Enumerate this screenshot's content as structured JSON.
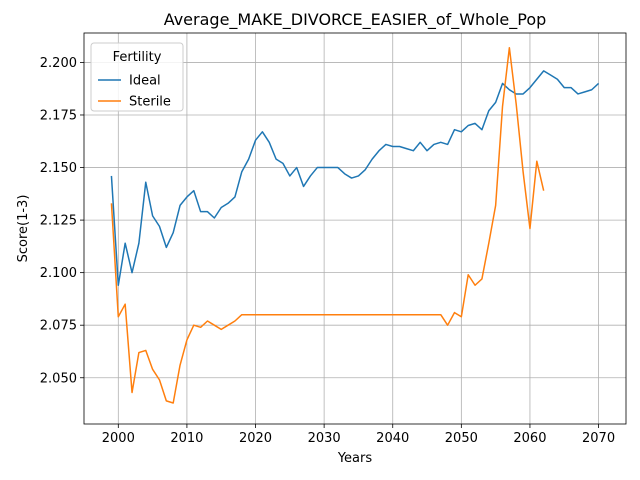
{
  "chart_data": {
    "type": "line",
    "title": "Average_MAKE_DIVORCE_EASIER_of_Whole_Pop",
    "xlabel": "Years",
    "ylabel": "Score(1-3)",
    "xlim": [
      1995,
      2074
    ],
    "ylim": [
      2.028,
      2.214
    ],
    "xticks": [
      2000,
      2010,
      2020,
      2030,
      2040,
      2050,
      2060,
      2070
    ],
    "yticks": [
      2.05,
      2.075,
      2.1,
      2.125,
      2.15,
      2.175,
      2.2
    ],
    "ytick_labels": [
      "2.050",
      "2.075",
      "2.100",
      "2.125",
      "2.150",
      "2.175",
      "2.200"
    ],
    "grid": true,
    "legend": {
      "title": "Fertility",
      "position": "top-left"
    },
    "series": [
      {
        "name": "Ideal",
        "color": "#1f77b4",
        "x": [
          1999,
          2000,
          2001,
          2002,
          2003,
          2004,
          2005,
          2006,
          2007,
          2008,
          2009,
          2010,
          2011,
          2012,
          2013,
          2014,
          2015,
          2016,
          2017,
          2018,
          2019,
          2020,
          2021,
          2022,
          2023,
          2024,
          2025,
          2026,
          2027,
          2028,
          2029,
          2030,
          2031,
          2032,
          2033,
          2034,
          2035,
          2036,
          2037,
          2038,
          2039,
          2040,
          2041,
          2042,
          2043,
          2044,
          2045,
          2046,
          2047,
          2048,
          2049,
          2050,
          2051,
          2052,
          2053,
          2054,
          2055,
          2056,
          2057,
          2058,
          2059,
          2060,
          2061,
          2062,
          2063,
          2064,
          2065,
          2066,
          2067,
          2068,
          2069,
          2070
        ],
        "y": [
          2.146,
          2.094,
          2.114,
          2.1,
          2.114,
          2.143,
          2.127,
          2.122,
          2.112,
          2.119,
          2.132,
          2.136,
          2.139,
          2.129,
          2.129,
          2.126,
          2.131,
          2.133,
          2.136,
          2.148,
          2.154,
          2.163,
          2.167,
          2.162,
          2.154,
          2.152,
          2.146,
          2.15,
          2.141,
          2.146,
          2.15,
          2.15,
          2.15,
          2.15,
          2.147,
          2.145,
          2.146,
          2.149,
          2.154,
          2.158,
          2.161,
          2.16,
          2.16,
          2.159,
          2.158,
          2.162,
          2.158,
          2.161,
          2.162,
          2.161,
          2.168,
          2.167,
          2.17,
          2.171,
          2.168,
          2.177,
          2.181,
          2.19,
          2.187,
          2.185,
          2.185,
          2.188,
          2.192,
          2.196,
          2.194,
          2.192,
          2.188,
          2.188,
          2.185,
          2.186,
          2.187,
          2.19
        ]
      },
      {
        "name": "Sterile",
        "color": "#ff7f0e",
        "x": [
          1999,
          2000,
          2001,
          2002,
          2003,
          2004,
          2005,
          2006,
          2007,
          2008,
          2009,
          2010,
          2011,
          2012,
          2013,
          2014,
          2015,
          2016,
          2017,
          2018,
          2019,
          2020,
          2021,
          2022,
          2023,
          2024,
          2025,
          2026,
          2027,
          2028,
          2029,
          2030,
          2031,
          2032,
          2033,
          2034,
          2035,
          2036,
          2037,
          2038,
          2039,
          2040,
          2041,
          2042,
          2043,
          2044,
          2045,
          2046,
          2047,
          2048,
          2049,
          2050,
          2051,
          2052,
          2053,
          2054,
          2055,
          2056,
          2057,
          2058,
          2059,
          2060,
          2061,
          2062
        ],
        "y": [
          2.133,
          2.079,
          2.085,
          2.043,
          2.062,
          2.063,
          2.054,
          2.049,
          2.039,
          2.038,
          2.056,
          2.068,
          2.075,
          2.074,
          2.077,
          2.075,
          2.073,
          2.075,
          2.077,
          2.08,
          2.08,
          2.08,
          2.08,
          2.08,
          2.08,
          2.08,
          2.08,
          2.08,
          2.08,
          2.08,
          2.08,
          2.08,
          2.08,
          2.08,
          2.08,
          2.08,
          2.08,
          2.08,
          2.08,
          2.08,
          2.08,
          2.08,
          2.08,
          2.08,
          2.08,
          2.08,
          2.08,
          2.08,
          2.08,
          2.075,
          2.081,
          2.079,
          2.099,
          2.094,
          2.097,
          2.114,
          2.132,
          2.179,
          2.207,
          2.18,
          2.148,
          2.121,
          2.153,
          2.139
        ]
      }
    ]
  }
}
